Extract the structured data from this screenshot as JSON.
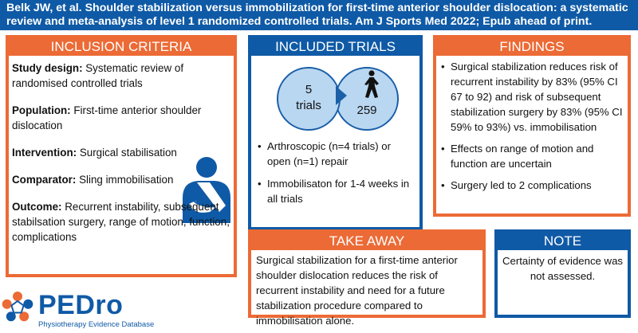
{
  "banner": {
    "text": "Belk JW, et al. Shoulder stabilization versus immobilization for first-time anterior shoulder dislocation: a systematic review and meta-analysis of level 1 randomized controlled trials. Am J Sports Med 2022; Epub ahead of print."
  },
  "inclusion": {
    "heading": "INCLUSION CRITERIA",
    "items": [
      {
        "label": "Study design:",
        "text": " Systematic review of randomised controlled trials"
      },
      {
        "label": "Population:",
        "text": " First-time anterior shoulder dislocation"
      },
      {
        "label": "Intervention:",
        "text": " Surgical stabilisation"
      },
      {
        "label": "Comparator:",
        "text": " Sling immobilisation"
      },
      {
        "label": "Outcome:",
        "text": " Recurrent instability, subsequent stabilsation surgery, range of motion, function, complications"
      }
    ]
  },
  "trials": {
    "heading": "INCLUDED TRIALS",
    "trial_count": "5",
    "trial_unit": "trials",
    "participant_count": "259",
    "bullets": [
      "Arthroscopic (n=4 trials) or open (n=1) repair",
      "Immobilisaton for 1-4 weeks in all trials"
    ]
  },
  "findings": {
    "heading": "FINDINGS",
    "bullets": [
      "Surgical stabilization reduces risk of recurrent instability by 83% (95% CI 67 to 92) and risk of subsequent stabilization surgery by 83% (95% CI 59% to 93%) vs. immobilisation",
      "Effects on range of motion and function are uncertain",
      "Surgery led to 2 complications"
    ]
  },
  "takeaway": {
    "heading": "TAKE AWAY",
    "text": "Surgical stabilization for a first-time anterior shoulder dislocation reduces the risk of recurrent instability and need for a future stabilization procedure compared to immobilisation alone."
  },
  "note": {
    "heading": "NOTE",
    "text": "Certainty of evidence was not assessed."
  },
  "logo": {
    "name": "PEDro",
    "tagline": "Physiotherapy Evidence Database"
  },
  "colors": {
    "blue": "#0f5aa6",
    "orange": "#ec6a35",
    "light_blue": "#b9d7f1"
  },
  "icons": {
    "figure": "person-arm-sling-icon",
    "walker": "walking-person-icon",
    "logo": "star-logo-icon"
  }
}
